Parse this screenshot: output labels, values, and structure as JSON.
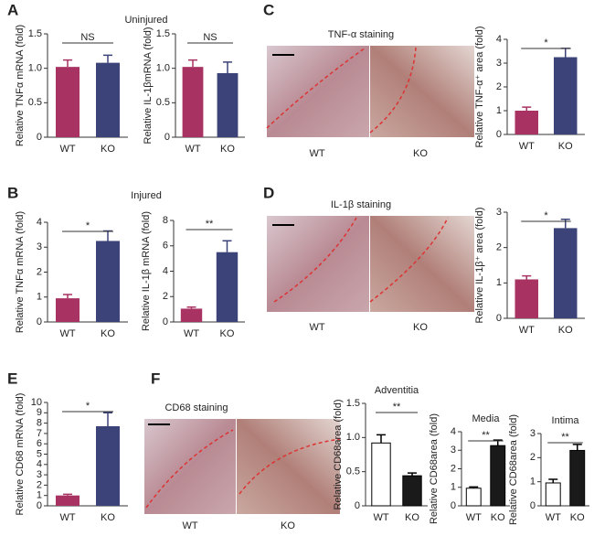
{
  "chart_data": [
    {
      "type": "bar",
      "ylabel": "Relative TNFα mRNA (fold)",
      "categories": [
        "WT",
        "KO"
      ],
      "values": [
        1.02,
        1.08
      ],
      "errors": [
        0.1,
        0.11
      ],
      "colors": [
        "#a83262",
        "#3b4378"
      ],
      "ylim": [
        0,
        1.5
      ],
      "yticks": [
        0,
        0.5,
        {
          "value": 1,
          "label": "1.0"
        },
        1.5
      ],
      "annotation": "NS"
    },
    {
      "type": "bar",
      "ylabel": "Relative IL-1βmRNA (fold)",
      "categories": [
        "WT",
        "KO"
      ],
      "values": [
        1.02,
        0.93
      ],
      "errors": [
        0.1,
        0.16
      ],
      "colors": [
        "#a83262",
        "#3b4378"
      ],
      "ylim": [
        0,
        1.5
      ],
      "yticks": [
        0,
        0.5,
        {
          "value": 1,
          "label": "1.0"
        },
        1.5
      ],
      "annotation": "NS"
    },
    {
      "type": "bar",
      "ylabel": "Relative TNF-α⁺ area (fold)",
      "categories": [
        "WT",
        "KO"
      ],
      "values": [
        1.0,
        3.25
      ],
      "errors": [
        0.15,
        0.37
      ],
      "colors": [
        "#a83262",
        "#3b4378"
      ],
      "ylim": [
        0,
        4
      ],
      "yticks": [
        0,
        1,
        2,
        3,
        4
      ],
      "annotation": "*"
    },
    {
      "type": "bar",
      "ylabel": "Relative TNFα mRNA (fold)",
      "categories": [
        "WT",
        "KO"
      ],
      "values": [
        0.95,
        3.25
      ],
      "errors": [
        0.15,
        0.4
      ],
      "colors": [
        "#a83262",
        "#3b4378"
      ],
      "ylim": [
        0,
        4
      ],
      "yticks": [
        0,
        1,
        2,
        3,
        4
      ],
      "annotation": "*"
    },
    {
      "type": "bar",
      "ylabel": "Relative IL-1β mRNA (fold)",
      "categories": [
        "WT",
        "KO"
      ],
      "values": [
        1.05,
        5.5
      ],
      "errors": [
        0.12,
        0.9
      ],
      "colors": [
        "#a83262",
        "#3b4378"
      ],
      "ylim": [
        0,
        8
      ],
      "yticks": [
        0,
        2,
        4,
        6,
        8
      ],
      "annotation": "**"
    },
    {
      "type": "bar",
      "ylabel": "Relative IL-1β⁺ area (fold)",
      "categories": [
        "WT",
        "KO"
      ],
      "values": [
        1.1,
        2.55
      ],
      "errors": [
        0.1,
        0.25
      ],
      "colors": [
        "#a83262",
        "#3b4378"
      ],
      "ylim": [
        0,
        3
      ],
      "yticks": [
        0,
        1,
        2,
        3
      ],
      "annotation": "*"
    },
    {
      "type": "bar",
      "ylabel": "Relative CD68 mRNA (fold)",
      "categories": [
        "WT",
        "KO"
      ],
      "values": [
        1.0,
        7.7
      ],
      "errors": [
        0.12,
        1.3
      ],
      "colors": [
        "#a83262",
        "#3b4378"
      ],
      "ylim": [
        0,
        10
      ],
      "yticks": [
        0,
        1,
        2,
        3,
        4,
        5,
        6,
        7,
        8,
        9,
        10
      ],
      "annotation": "*"
    },
    {
      "type": "bar",
      "title": "Adventitia",
      "ylabel": "Relative CD68area (fold)",
      "categories": [
        "WT",
        "KO"
      ],
      "values": [
        0.92,
        0.44
      ],
      "errors": [
        0.12,
        0.04
      ],
      "colors": [
        "#ffffff",
        "#1a1a1a"
      ],
      "edgecolor": "#000000",
      "ylim": [
        0,
        1.5
      ],
      "yticks": [
        0,
        0.5,
        {
          "value": 1,
          "label": "1.0"
        },
        1.5
      ],
      "annotation": "**"
    },
    {
      "type": "bar",
      "title": "Media",
      "ylabel": "Relative CD68area (fold)",
      "categories": [
        "WT",
        "KO"
      ],
      "values": [
        0.95,
        3.25
      ],
      "errors": [
        0.07,
        0.3
      ],
      "colors": [
        "#ffffff",
        "#1a1a1a"
      ],
      "edgecolor": "#000000",
      "ylim": [
        0,
        4
      ],
      "yticks": [
        0,
        1,
        2,
        3,
        4
      ],
      "annotation": "**"
    },
    {
      "type": "bar",
      "title": "Intima",
      "ylabel": "Relative CD68area (fold)",
      "categories": [
        "WT",
        "KO"
      ],
      "values": [
        0.95,
        2.3
      ],
      "errors": [
        0.15,
        0.25
      ],
      "colors": [
        "#ffffff",
        "#1a1a1a"
      ],
      "edgecolor": "#000000",
      "ylim": [
        0,
        3
      ],
      "yticks": [
        0,
        1,
        2,
        3
      ],
      "annotation": "**"
    }
  ],
  "panels": [
    {
      "label": "A",
      "title": "Uninjured"
    },
    {
      "label": "B",
      "title": "Injured"
    },
    {
      "label": "C"
    },
    {
      "label": "D"
    },
    {
      "label": "E"
    },
    {
      "label": "F"
    }
  ],
  "micrographs": [
    {
      "title": "TNF-α staining",
      "labels": [
        "WT",
        "KO"
      ]
    },
    {
      "title": "IL-1β staining",
      "labels": [
        "WT",
        "KO"
      ]
    },
    {
      "title": "CD68 staining",
      "labels": [
        "WT",
        "KO"
      ]
    }
  ]
}
